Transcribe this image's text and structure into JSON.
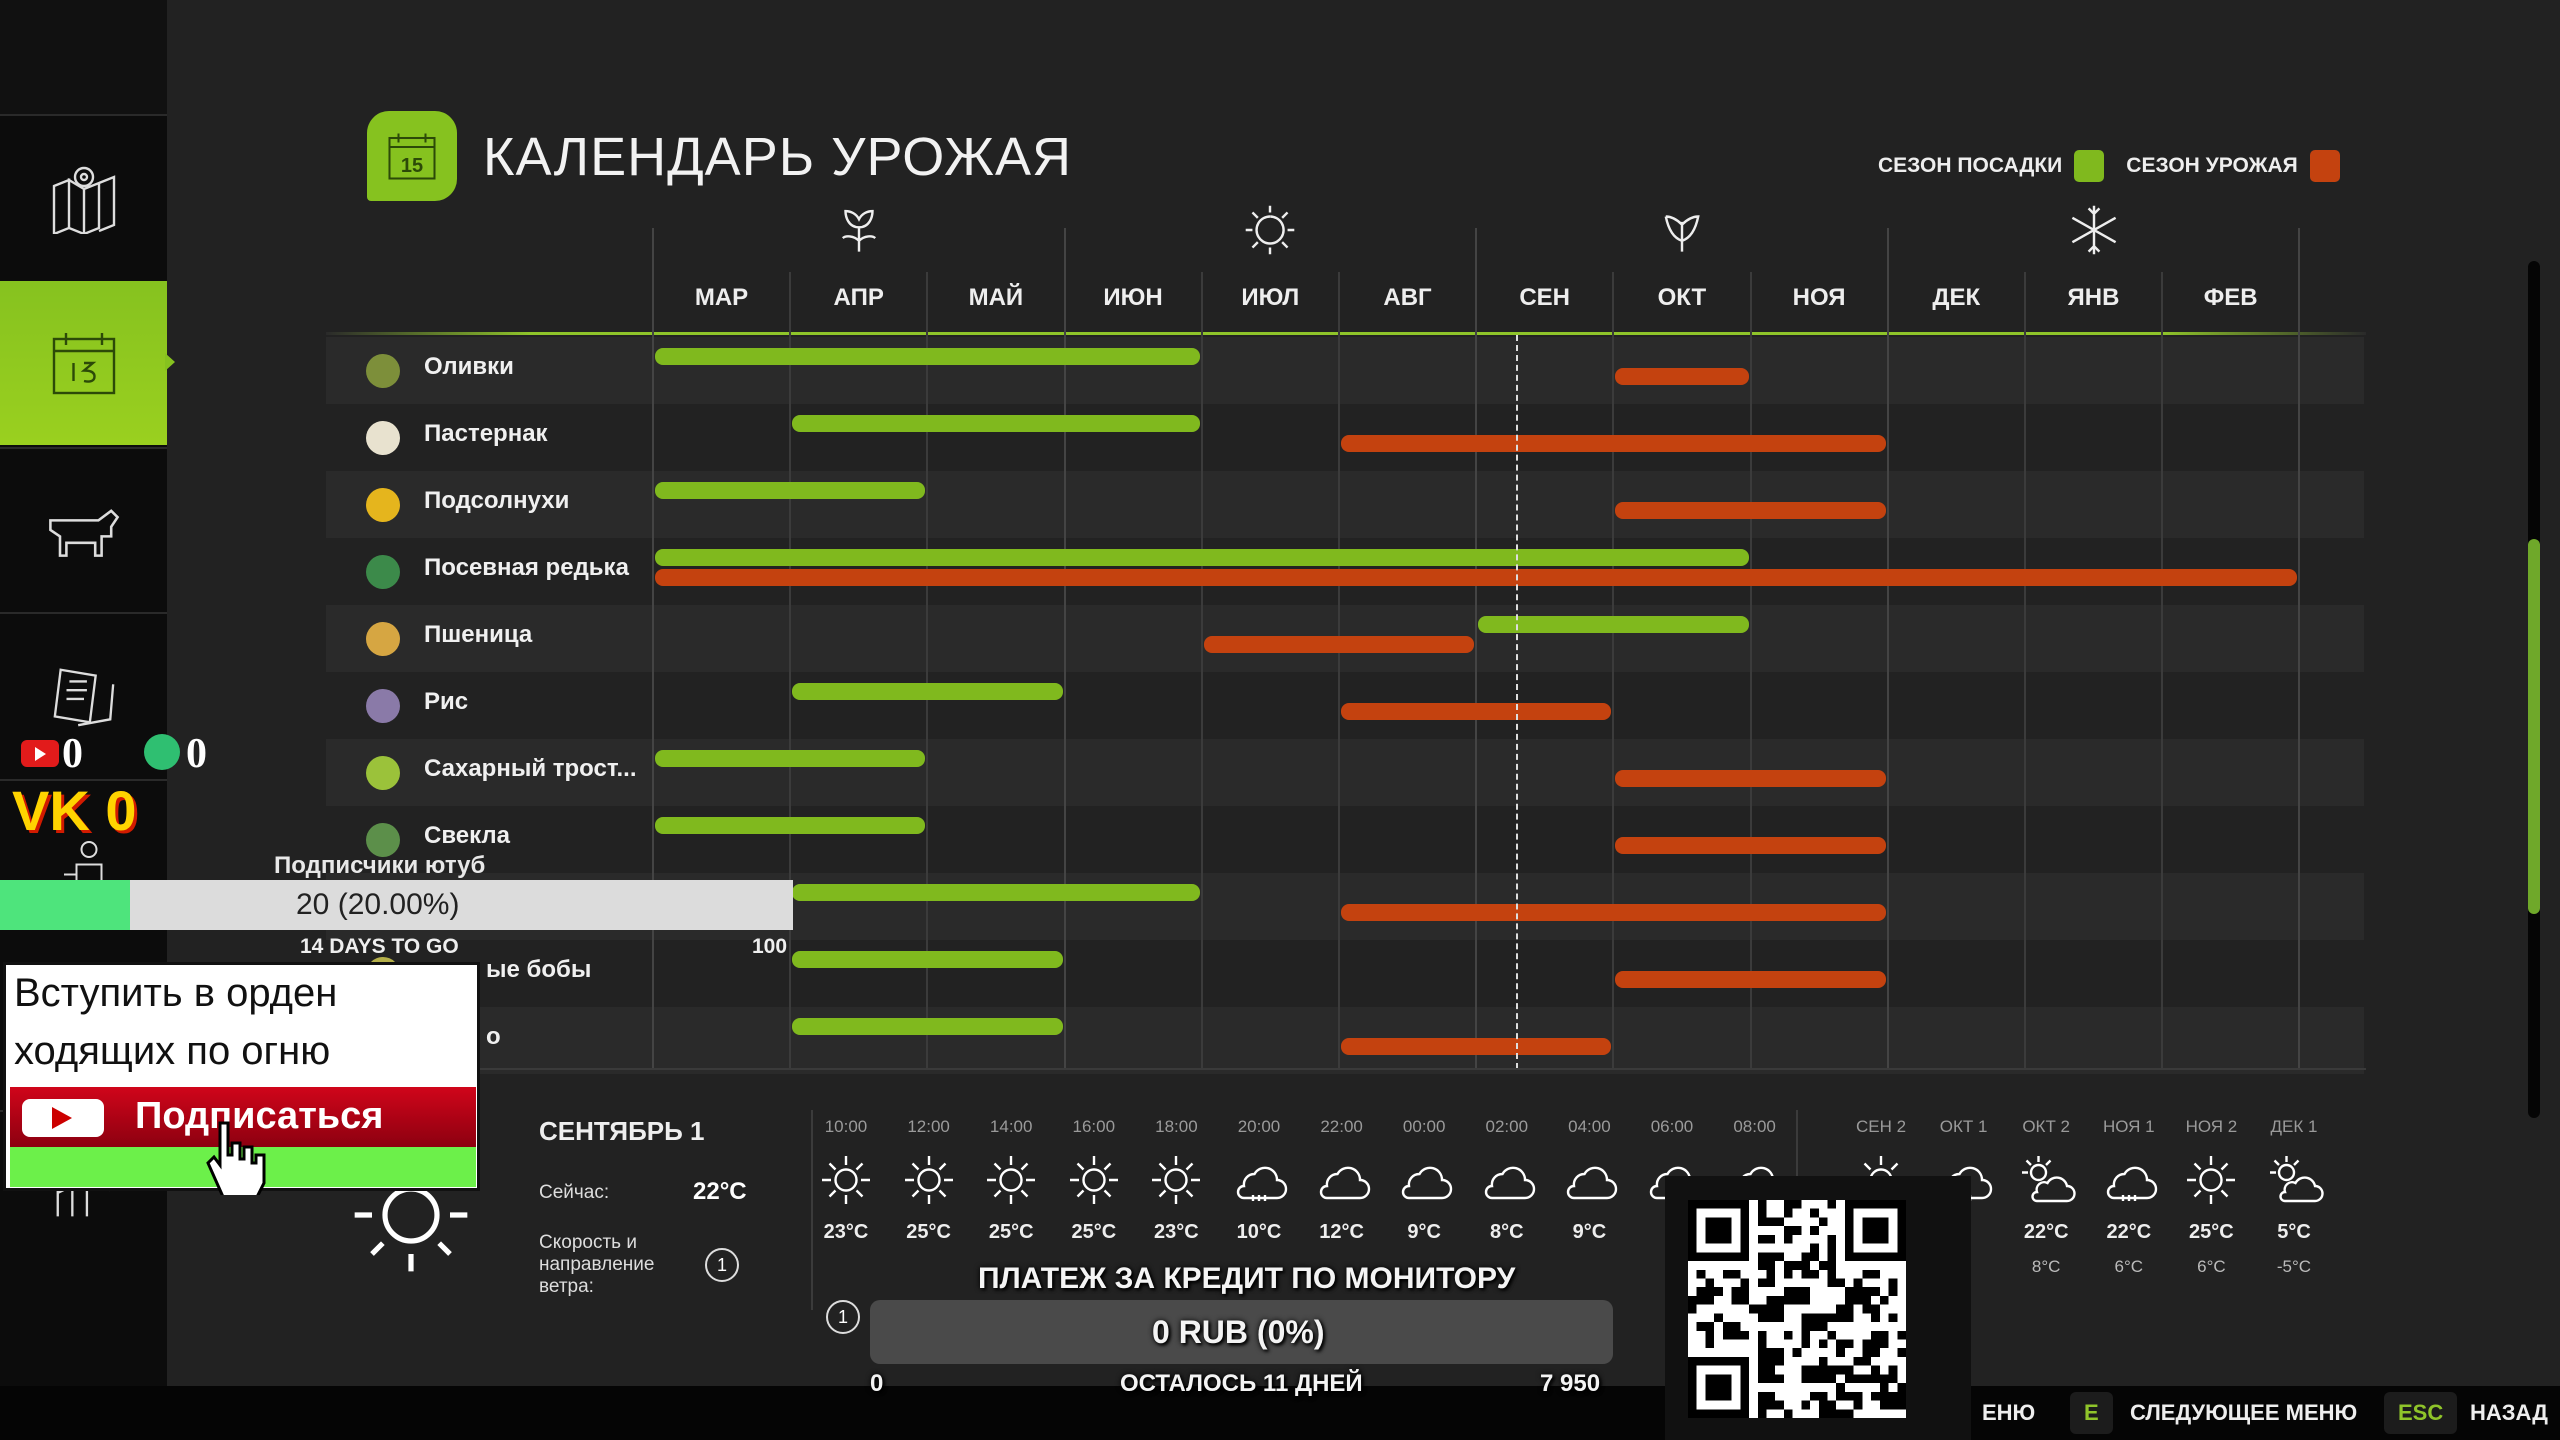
{
  "sidebar": {
    "items": [
      {
        "icon": "map-icon"
      },
      {
        "icon": "calendar-icon",
        "active": true
      },
      {
        "icon": "cow-icon"
      },
      {
        "icon": "contracts-icon"
      },
      {
        "icon": "farmer-icon"
      },
      {
        "icon": "production-icon"
      }
    ]
  },
  "header": {
    "title": "КАЛЕНДАРЬ УРОЖАЯ",
    "calendar_day": "15",
    "legend": {
      "planting": "СЕЗОН ПОСАДКИ",
      "harvest": "СЕЗОН УРОЖАЯ"
    }
  },
  "colors": {
    "planting": "#80b91e",
    "harvest": "#c4420f",
    "accent": "#86c21f"
  },
  "chart_data": {
    "type": "table",
    "months": [
      "МАР",
      "АПР",
      "МАЙ",
      "ИЮН",
      "ИЮЛ",
      "АВГ",
      "СЕН",
      "ОКТ",
      "НОЯ",
      "ДЕК",
      "ЯНВ",
      "ФЕВ"
    ],
    "season_icons": [
      "spring-flower-icon",
      "summer-sun-icon",
      "autumn-leaf-icon",
      "winter-snowflake-icon"
    ],
    "current_date_month_position": 6.29,
    "crops": [
      {
        "name": "Оливки",
        "color": "#7d8f3a",
        "planting": [
          0,
          4
        ],
        "harvest": [
          7,
          8
        ]
      },
      {
        "name": "Пастернак",
        "color": "#e8e2cf",
        "planting": [
          1,
          4
        ],
        "harvest": [
          5,
          9
        ]
      },
      {
        "name": "Подсолнухи",
        "color": "#e5b51d",
        "planting": [
          0,
          2
        ],
        "harvest": [
          7,
          9
        ]
      },
      {
        "name": "Посевная редька",
        "color": "#3c8a4a",
        "planting": [
          0,
          8
        ],
        "harvest": [
          0,
          12
        ]
      },
      {
        "name": "Пшеница",
        "color": "#d6a642",
        "planting": [
          6,
          8
        ],
        "harvest": [
          4,
          6
        ]
      },
      {
        "name": "Рис",
        "color": "#8a7aa8",
        "planting": [
          1,
          3
        ],
        "harvest": [
          5,
          7
        ]
      },
      {
        "name": "Сахарный трост...",
        "color": "#9bc23a",
        "planting": [
          0,
          2
        ],
        "harvest": [
          7,
          9
        ]
      },
      {
        "name": "Свекла",
        "color": "#5c8f4a",
        "planting": [
          0,
          2
        ],
        "harvest": [
          7,
          9
        ]
      },
      {
        "name": "",
        "color": "#b99a50",
        "planting": [
          1,
          4
        ],
        "harvest": [
          5,
          9
        ]
      },
      {
        "name": "ые бобы",
        "color": "#b5b04a",
        "planting": [
          1,
          3
        ],
        "harvest": [
          7,
          9
        ]
      },
      {
        "name": "о",
        "color": "#b06a3a",
        "planting": [
          1,
          3
        ],
        "harvest": [
          5,
          7
        ]
      }
    ]
  },
  "weather": {
    "date": "СЕНТЯБРЬ 1",
    "now_label": "Сейчас:",
    "now_temp": "22°C",
    "wind_label": "Скорость и направление ветра:",
    "wind_value": "1",
    "hourly": [
      {
        "time": "10:00",
        "icon": "sun",
        "temp": "23°C"
      },
      {
        "time": "12:00",
        "icon": "sun",
        "temp": "25°C"
      },
      {
        "time": "14:00",
        "icon": "sun",
        "temp": "25°C"
      },
      {
        "time": "16:00",
        "icon": "sun",
        "temp": "25°C"
      },
      {
        "time": "18:00",
        "icon": "sun",
        "temp": "23°C"
      },
      {
        "time": "20:00",
        "icon": "rain",
        "temp": "10°C"
      },
      {
        "time": "22:00",
        "icon": "cloud",
        "temp": "12°C"
      },
      {
        "time": "00:00",
        "icon": "cloud",
        "temp": "9°C"
      },
      {
        "time": "02:00",
        "icon": "cloud",
        "temp": "8°C"
      },
      {
        "time": "04:00",
        "icon": "cloud",
        "temp": "9°C"
      },
      {
        "time": "06:00",
        "icon": "cloud",
        "temp": ""
      },
      {
        "time": "08:00",
        "icon": "cloud",
        "temp": ""
      }
    ],
    "daily": [
      {
        "day": "СЕН 2",
        "icon": "sun",
        "high": "",
        "low": ""
      },
      {
        "day": "ОКТ 1",
        "icon": "rain",
        "high": "",
        "low": ""
      },
      {
        "day": "ОКТ 2",
        "icon": "suncloud",
        "high": "22°C",
        "low": "8°C"
      },
      {
        "day": "НОЯ 1",
        "icon": "rain",
        "high": "22°C",
        "low": "6°C"
      },
      {
        "day": "НОЯ 2",
        "icon": "sun",
        "high": "25°C",
        "low": "6°C"
      },
      {
        "day": "ДЕК 1",
        "icon": "suncloud",
        "high": "5°C",
        "low": "-5°C"
      }
    ]
  },
  "footer": {
    "prev": "ЕНЮ",
    "next_key": "E",
    "next": "СЛЕДУЮЩЕЕ МЕНЮ",
    "back_key": "ESC",
    "back": "НАЗАД"
  },
  "overlays": {
    "youtube_count": "0",
    "tiktok_count": "0",
    "vk": "VK 0",
    "subs_label": "Подписчики ютуб",
    "subs_progress": "20 (20.00%)",
    "subs_percent": 20,
    "subs_days": "14 DAYS TO GO",
    "subs_goal": "100",
    "popup_line1": "Вступить в орден",
    "popup_line2": "ходящих по огню",
    "subscribe": "Подписаться",
    "credit_title": "ПЛАТЕЖ ЗА КРЕДИТ ПО МОНИТОРУ",
    "credit_value": "0 RUB (0%)",
    "credit_percent": 0,
    "credit_min": "0",
    "credit_days": "ОСТАЛОСЬ 11 ДНЕЙ",
    "credit_max": "7 950"
  }
}
